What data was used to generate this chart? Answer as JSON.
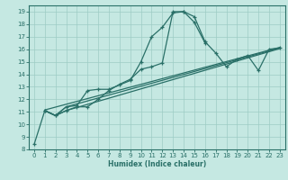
{
  "xlabel": "Humidex (Indice chaleur)",
  "xlim": [
    -0.5,
    23.5
  ],
  "ylim": [
    8,
    19.5
  ],
  "xticks": [
    0,
    1,
    2,
    3,
    4,
    5,
    6,
    7,
    8,
    9,
    10,
    11,
    12,
    13,
    14,
    15,
    16,
    17,
    18,
    19,
    20,
    21,
    22,
    23
  ],
  "yticks": [
    8,
    9,
    10,
    11,
    12,
    13,
    14,
    15,
    16,
    17,
    18,
    19
  ],
  "bg_color": "#c5e8e2",
  "line_color": "#2a7068",
  "grid_color": "#9dccc4",
  "line1_x": [
    0,
    1,
    2,
    3,
    4,
    5,
    6,
    7,
    9,
    10,
    11,
    12,
    13,
    14,
    15,
    16
  ],
  "line1_y": [
    8.4,
    11.1,
    10.7,
    11.4,
    11.5,
    12.7,
    12.8,
    12.8,
    13.5,
    15.0,
    17.0,
    17.75,
    18.9,
    19.0,
    18.15,
    16.5
  ],
  "line2_x": [
    1,
    2,
    3,
    4,
    5,
    6,
    7,
    8,
    9,
    10,
    11,
    12,
    13,
    14,
    15,
    16,
    17,
    18,
    19,
    20,
    21,
    22,
    23
  ],
  "line2_y": [
    11.1,
    10.7,
    11.1,
    11.4,
    11.4,
    12.0,
    12.7,
    13.2,
    13.6,
    14.4,
    14.6,
    14.9,
    19.0,
    19.0,
    18.6,
    16.6,
    15.7,
    14.6,
    15.2,
    15.5,
    14.3,
    16.0,
    16.1
  ],
  "trend1_x": [
    1,
    2,
    3,
    23
  ],
  "trend1_y": [
    11.1,
    10.7,
    11.1,
    16.05
  ],
  "trend2_x": [
    1,
    2,
    3,
    23
  ],
  "trend2_y": [
    11.1,
    10.7,
    11.4,
    16.1
  ],
  "trend3_x": [
    1,
    23
  ],
  "trend3_y": [
    11.15,
    16.15
  ]
}
